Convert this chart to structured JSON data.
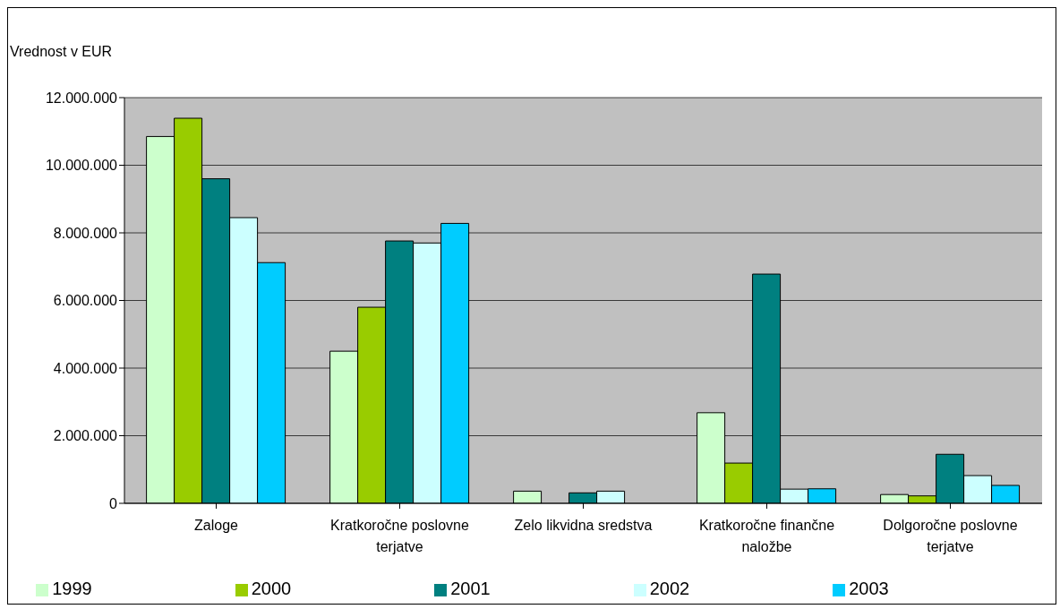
{
  "chart_data": {
    "type": "bar",
    "ylabel": "Vrednost v EUR",
    "categories": [
      "Zaloge",
      "Kratkoročne poslovne terjatve",
      "Zelo likvidna sredstva",
      "Kratkoročne finančne naložbe",
      "Dolgoročne poslovne terjatve"
    ],
    "series": [
      {
        "name": "1999",
        "color": "#ccffcc",
        "values": [
          10850000,
          4500000,
          360000,
          2680000,
          260000
        ]
      },
      {
        "name": "2000",
        "color": "#99cc00",
        "values": [
          11390000,
          5800000,
          0,
          1190000,
          220000
        ]
      },
      {
        "name": "2001",
        "color": "#008080",
        "values": [
          9600000,
          7760000,
          310000,
          6780000,
          1450000
        ]
      },
      {
        "name": "2002",
        "color": "#ccffff",
        "values": [
          8450000,
          7700000,
          360000,
          420000,
          820000
        ]
      },
      {
        "name": "2003",
        "color": "#00ccff",
        "values": [
          7120000,
          8280000,
          0,
          430000,
          530000
        ]
      }
    ],
    "ylim": [
      0,
      12000000
    ],
    "yticks": [
      {
        "value": 0,
        "label": "0"
      },
      {
        "value": 2000000,
        "label": "2.000.000"
      },
      {
        "value": 4000000,
        "label": "4.000.000"
      },
      {
        "value": 6000000,
        "label": "6.000.000"
      },
      {
        "value": 8000000,
        "label": "8.000.000"
      },
      {
        "value": 10000000,
        "label": "10.000.000"
      },
      {
        "value": 12000000,
        "label": "12.000.000"
      }
    ],
    "grid": "y",
    "legend": "bottom"
  }
}
